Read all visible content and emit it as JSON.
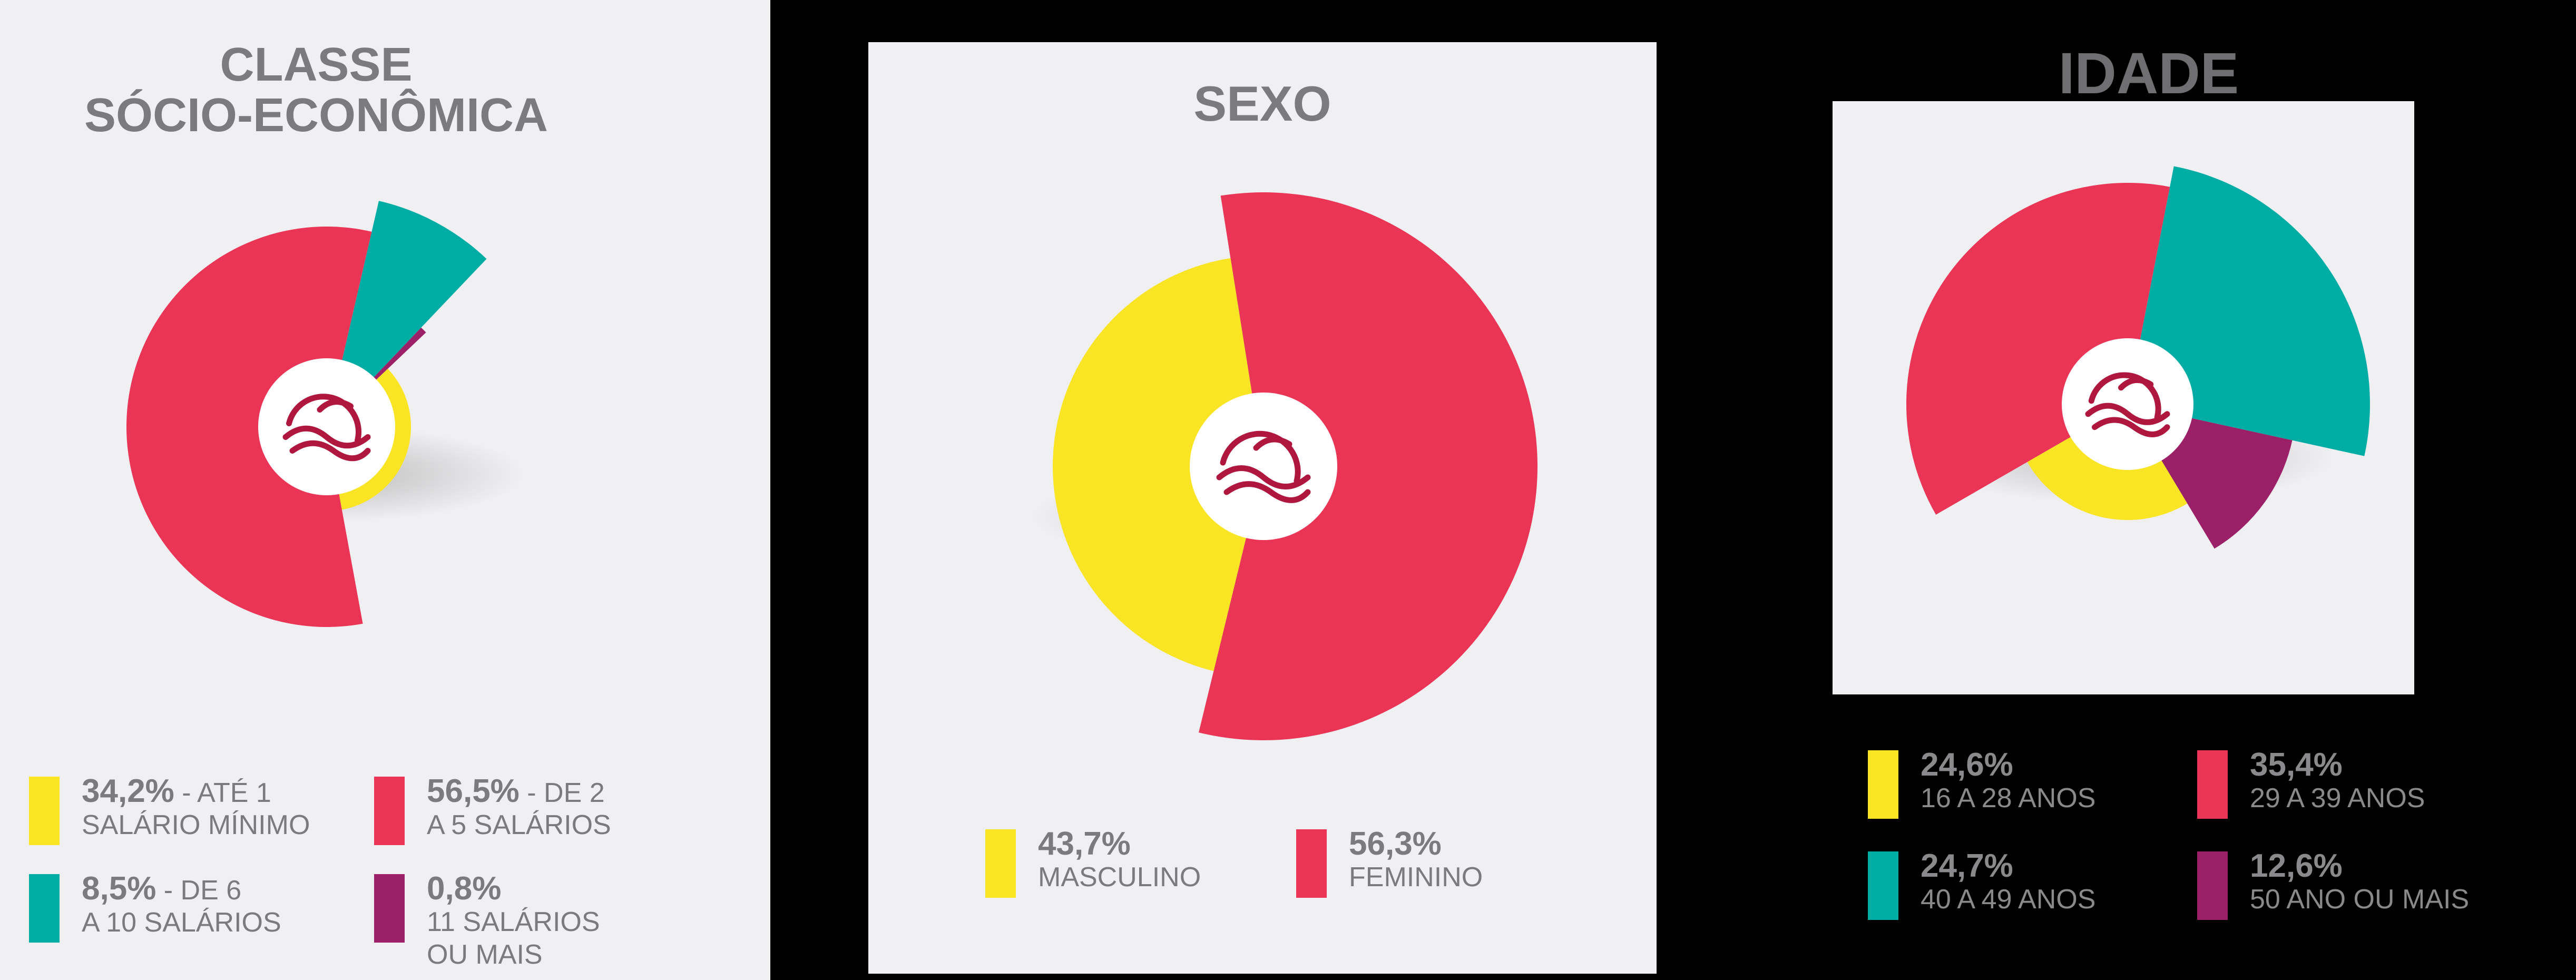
{
  "colors": {
    "yellow": "#f9e524",
    "red": "#ea3556",
    "teal": "#00ada5",
    "purple": "#9b2068"
  },
  "chart_data": [
    {
      "type": "pie",
      "title_lines": [
        "CLASSE",
        "SÓCIO-ECONÔMICA"
      ],
      "legend_placement": "bottom",
      "slices": [
        {
          "value": 34.2,
          "value_label": "34,2%",
          "sep": " - ",
          "desc_lines": [
            "ATÉ 1",
            "SALÁRIO MÍNIMO"
          ],
          "color": "#f9e524"
        },
        {
          "value": 56.5,
          "value_label": "56,5%",
          "sep": " - ",
          "desc_lines": [
            "DE 2",
            "A 5 SALÁRIOS"
          ],
          "color": "#ea3556"
        },
        {
          "value": 8.5,
          "value_label": "8,5%",
          "sep": " - ",
          "desc_lines": [
            "DE 6",
            "A 10 SALÁRIOS"
          ],
          "color": "#00ada5"
        },
        {
          "value": 0.8,
          "value_label": "0,8%",
          "sep": "",
          "desc_lines": [
            "",
            "11 SALÁRIOS",
            "OU MAIS"
          ],
          "color": "#9b2068"
        }
      ]
    },
    {
      "type": "pie",
      "title_lines": [
        "SEXO"
      ],
      "legend_placement": "bottom",
      "slices": [
        {
          "value": 43.7,
          "value_label": "43,7%",
          "sep": "",
          "desc_lines": [
            "",
            "MASCULINO"
          ],
          "color": "#f9e524"
        },
        {
          "value": 56.3,
          "value_label": "56,3%",
          "sep": "",
          "desc_lines": [
            "",
            "FEMININO"
          ],
          "color": "#ea3556"
        }
      ]
    },
    {
      "type": "pie",
      "title_lines": [
        "IDADE"
      ],
      "legend_placement": "bottom",
      "slices": [
        {
          "value": 24.6,
          "value_label": "24,6%",
          "sep": "",
          "desc_lines": [
            "",
            "16 A 28 ANOS"
          ],
          "color": "#f9e524"
        },
        {
          "value": 35.4,
          "value_label": "35,4%",
          "sep": "",
          "desc_lines": [
            "",
            "29 A 39 ANOS"
          ],
          "color": "#ea3556"
        },
        {
          "value": 24.7,
          "value_label": "24,7%",
          "sep": "",
          "desc_lines": [
            "",
            "40 A 49 ANOS"
          ],
          "color": "#00ada5"
        },
        {
          "value": 12.6,
          "value_label": "12,6%",
          "sep": "",
          "desc_lines": [
            "",
            "50 ANO OU MAIS"
          ],
          "color": "#9b2068"
        }
      ]
    }
  ]
}
